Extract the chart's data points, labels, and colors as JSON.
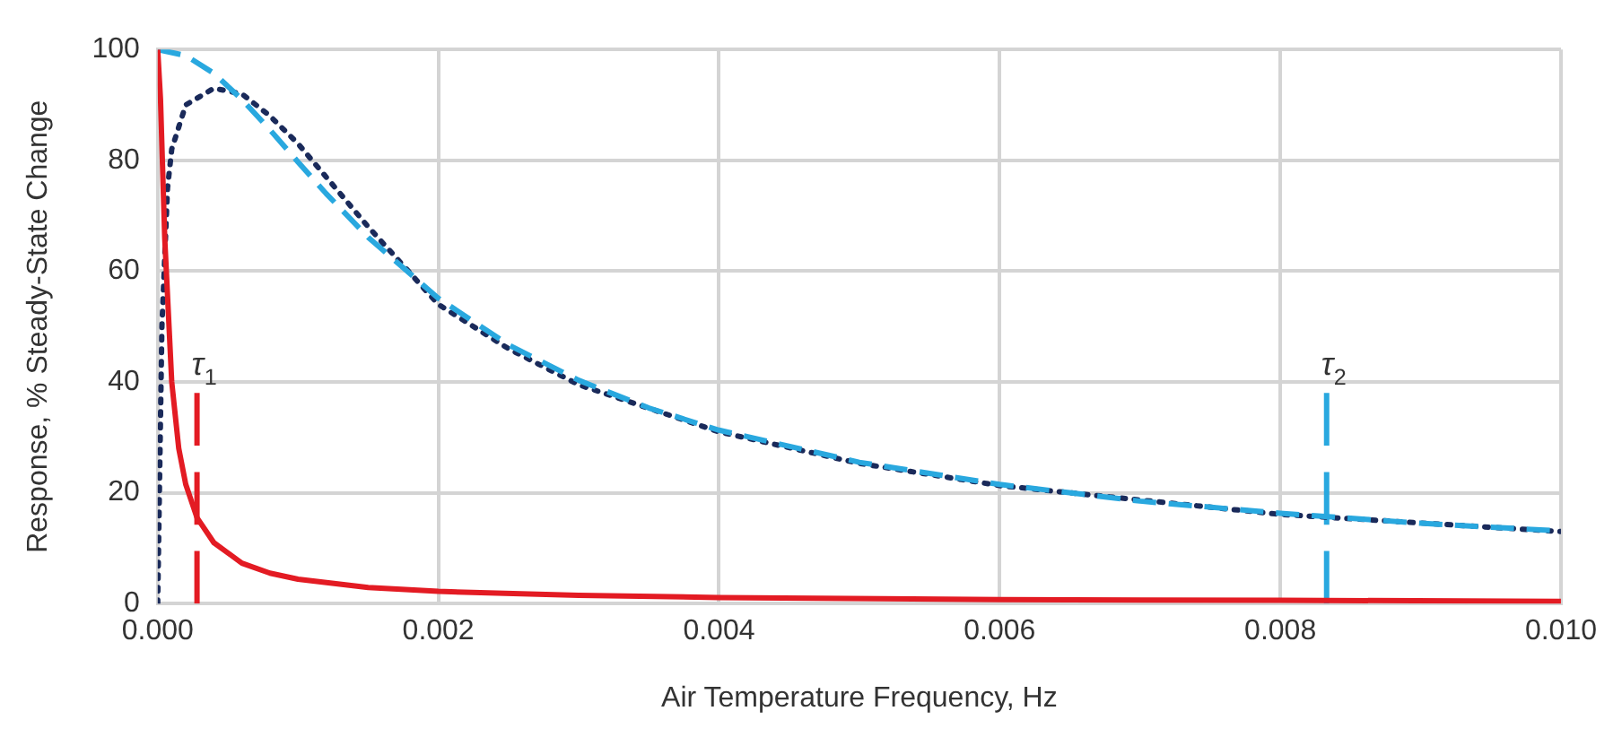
{
  "chart_data": {
    "type": "line",
    "xlabel": "Air Temperature Frequency, Hz",
    "ylabel": "Response, % Steady-State Change",
    "xlim": [
      0,
      0.01
    ],
    "xticks": [
      {
        "value": 0,
        "label": "0.000"
      },
      {
        "value": 0.002,
        "label": "0.002"
      },
      {
        "value": 0.004,
        "label": "0.004"
      },
      {
        "value": 0.006,
        "label": "0.006"
      },
      {
        "value": 0.008,
        "label": "0.008"
      },
      {
        "value": 0.01,
        "label": "0.010"
      }
    ],
    "ylim": [
      0,
      100
    ],
    "yticks": [
      0,
      20,
      40,
      60,
      80,
      100
    ],
    "grid": true,
    "legend": false,
    "marker": "none",
    "series": [
      {
        "color": "#e31b23",
        "line_style": "solid",
        "x": [
          0,
          2e-05,
          5e-05,
          0.0001,
          0.00015,
          0.0002,
          0.00028,
          0.0004,
          0.0006,
          0.0008,
          0.001,
          0.0015,
          0.002,
          0.003,
          0.004,
          0.006,
          0.008,
          0.01
        ],
        "values": [
          100,
          91,
          66,
          40,
          28,
          21.5,
          15.5,
          11,
          7.3,
          5.5,
          4.4,
          2.9,
          2.2,
          1.5,
          1.1,
          0.7,
          0.6,
          0.4
        ]
      },
      {
        "color": "#29a8df",
        "line_style": "dashed",
        "x": [
          0,
          0.0002,
          0.0004,
          0.0006,
          0.0008,
          0.001,
          0.0012,
          0.0015,
          0.002,
          0.0025,
          0.003,
          0.0035,
          0.004,
          0.005,
          0.006,
          0.007,
          0.008,
          0.009,
          0.01
        ],
        "values": [
          100,
          98.9,
          95.7,
          91,
          85.5,
          79.7,
          74,
          66.1,
          55.1,
          46.7,
          40.3,
          35.3,
          31.3,
          25.5,
          21.5,
          18.5,
          16.3,
          14.5,
          13.1
        ]
      },
      {
        "color": "#1a2a5a",
        "line_style": "dotted",
        "x": [
          0,
          3e-05,
          7e-05,
          0.0001,
          0.0002,
          0.0004,
          0.0006,
          0.0008,
          0.001,
          0.0012,
          0.0015,
          0.002,
          0.0025,
          0.003,
          0.004,
          0.005,
          0.006,
          0.008,
          0.01
        ],
        "values": [
          0,
          50,
          75,
          82,
          90,
          93,
          92,
          88,
          83,
          77,
          68,
          54,
          46,
          39.5,
          31,
          25.3,
          21.3,
          16.1,
          13
        ]
      },
      {
        "name": "τ$_{1}$",
        "color": "#e31b23",
        "line_style": "dashed",
        "x": [
          0.00028,
          0.00028
        ],
        "values": [
          0,
          38
        ]
      },
      {
        "name": "τ$_{2}$",
        "color": "#29a8df",
        "line_style": "dashed",
        "x": [
          0.00833,
          0.00833
        ],
        "values": [
          0,
          38
        ]
      }
    ]
  }
}
